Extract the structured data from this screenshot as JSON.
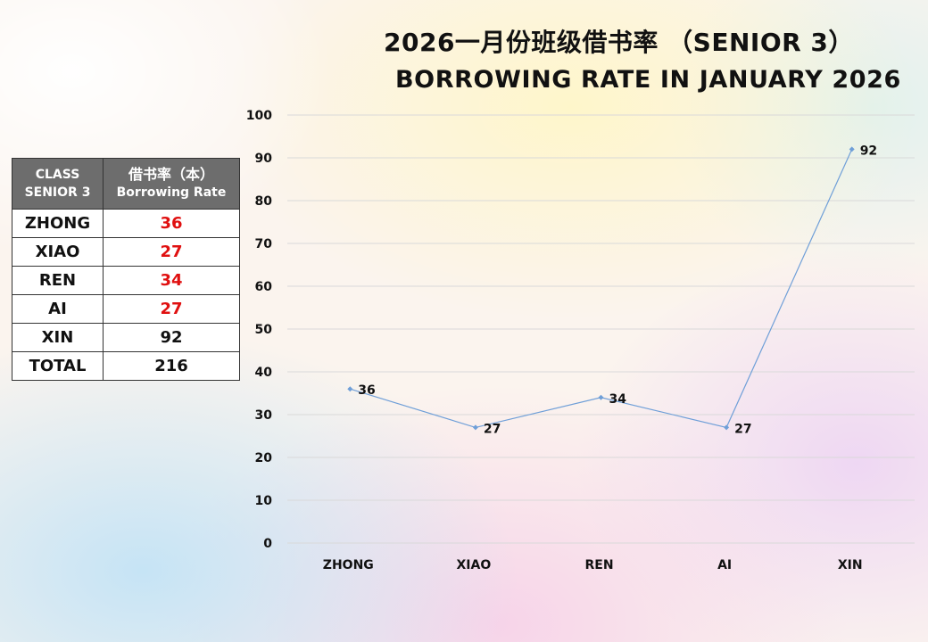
{
  "title_line1": "2026一月份班级借书率 （SENIOR 3）",
  "title_line2": "BORROWING RATE IN JANUARY 2026",
  "table": {
    "header_col1_line1": "CLASS",
    "header_col1_line2": "SENIOR 3",
    "header_col2_line1": "借书率（本）",
    "header_col2_line2": "Borrowing Rate",
    "rows": [
      {
        "class": "ZHONG",
        "rate": "36",
        "highlight": true
      },
      {
        "class": "XIAO",
        "rate": "27",
        "highlight": true
      },
      {
        "class": "REN",
        "rate": "34",
        "highlight": true
      },
      {
        "class": "AI",
        "rate": "27",
        "highlight": true
      },
      {
        "class": "XIN",
        "rate": "92",
        "highlight": false
      }
    ],
    "total_label": "TOTAL",
    "total_value": "216",
    "highlight_color": "#e01010"
  },
  "chart_data": {
    "type": "line",
    "title": "BORROWING RATE IN JANUARY 2026",
    "categories": [
      "ZHONG",
      "XIAO",
      "REN",
      "AI",
      "XIN"
    ],
    "series": [
      {
        "values": [
          36,
          27,
          34,
          27,
          92
        ],
        "color": "#6f9fd8"
      }
    ],
    "ylim": [
      0,
      100
    ],
    "yticks": [
      0,
      10,
      20,
      30,
      40,
      50,
      60,
      70,
      80,
      90,
      100
    ],
    "grid": true,
    "legend": "none",
    "data_labels": true
  }
}
